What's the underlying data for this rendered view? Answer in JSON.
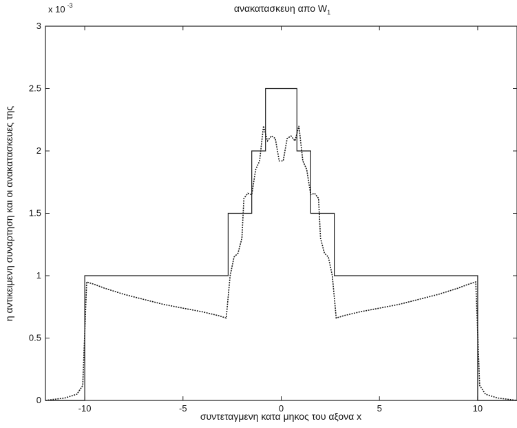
{
  "chart_data": {
    "type": "line",
    "title": "ανακατασκευη απο W",
    "title_subscript": "1",
    "xlabel": "συντεταγμενη κατα μηκος του αξονα x",
    "ylabel": "η αντικειμενη συναρτηση και οι ανακατασκευες της",
    "y_exponent_label": "x 10",
    "y_exponent_power": "-3",
    "xlim": [
      -12,
      12
    ],
    "ylim": [
      0,
      3
    ],
    "grid": false,
    "x_ticks": [
      -10,
      -5,
      0,
      5,
      10
    ],
    "x_tick_labels": [
      "-10",
      "-5",
      "0",
      "5",
      "10"
    ],
    "y_ticks": [
      0,
      0.5,
      1,
      1.5,
      2,
      2.5,
      3
    ],
    "y_tick_labels": [
      "0",
      "0.5",
      "1",
      "1.5",
      "2",
      "2.5",
      "3"
    ],
    "series": [
      {
        "style": "solid",
        "x": [
          -12,
          -10,
          -10,
          -2.7,
          -2.7,
          -2.1,
          -2.1,
          -1.5,
          -1.5,
          -0.8,
          -0.8,
          0.8,
          0.8,
          1.5,
          1.5,
          2.1,
          2.1,
          2.7,
          2.7,
          10,
          10,
          12
        ],
        "y": [
          0,
          0,
          1.0,
          1.0,
          1.5,
          1.5,
          1.5,
          1.5,
          2.0,
          2.0,
          2.5,
          2.5,
          2.0,
          2.0,
          1.5,
          1.5,
          1.5,
          1.5,
          1.0,
          1.0,
          0,
          0
        ]
      },
      {
        "style": "dotted",
        "x": [
          -12,
          -11,
          -10.4,
          -10.1,
          -9.9,
          -9.5,
          -9,
          -8,
          -7,
          -6,
          -5,
          -4,
          -3.2,
          -2.8,
          -2.6,
          -2.4,
          -2.2,
          -2.0,
          -1.9,
          -1.7,
          -1.5,
          -1.3,
          -1.1,
          -0.9,
          -0.7,
          -0.5,
          -0.3,
          -0.1,
          0.1,
          0.3,
          0.5,
          0.7,
          0.9,
          1.1,
          1.3,
          1.5,
          1.7,
          1.9,
          2.0,
          2.2,
          2.4,
          2.6,
          2.8,
          3.2,
          4,
          5,
          6,
          7,
          8,
          9,
          9.5,
          9.9,
          10.1,
          10.4,
          11,
          12
        ],
        "y": [
          0.0,
          0.02,
          0.05,
          0.12,
          0.95,
          0.93,
          0.9,
          0.85,
          0.81,
          0.77,
          0.74,
          0.71,
          0.68,
          0.66,
          1.0,
          1.15,
          1.18,
          1.3,
          1.62,
          1.66,
          1.65,
          1.85,
          1.92,
          2.2,
          2.08,
          2.12,
          2.1,
          1.92,
          1.92,
          2.1,
          2.12,
          2.08,
          2.2,
          1.92,
          1.85,
          1.65,
          1.66,
          1.62,
          1.3,
          1.18,
          1.15,
          1.0,
          0.66,
          0.68,
          0.71,
          0.74,
          0.77,
          0.81,
          0.85,
          0.9,
          0.93,
          0.95,
          0.12,
          0.05,
          0.02,
          0.0
        ]
      }
    ]
  }
}
